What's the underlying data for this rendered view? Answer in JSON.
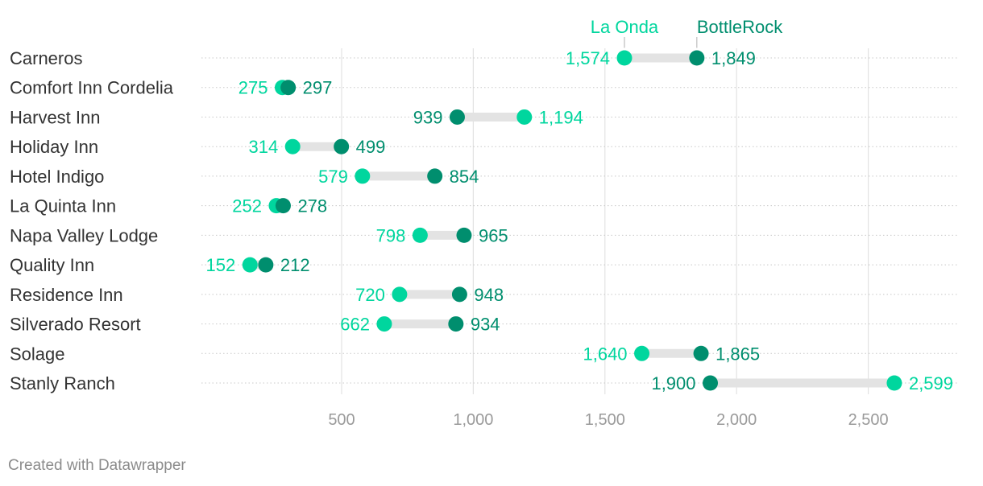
{
  "chart_data": {
    "type": "dot-range",
    "categories": [
      "Carneros",
      "Comfort Inn Cordelia",
      "Harvest Inn",
      "Holiday Inn",
      "Hotel Indigo",
      "La Quinta Inn",
      "Napa Valley Lodge",
      "Quality Inn",
      "Residence Inn",
      "Silverado Resort",
      "Solage",
      "Stanly Ranch"
    ],
    "series": [
      {
        "name": "La Onda",
        "color": "#00d69e",
        "values": [
          1574,
          275,
          1194,
          314,
          579,
          252,
          798,
          152,
          720,
          662,
          1640,
          2599
        ],
        "labels": [
          "1,574",
          "275",
          "1,194",
          "314",
          "579",
          "252",
          "798",
          "152",
          "720",
          "662",
          "1,640",
          "2,599"
        ]
      },
      {
        "name": "BottleRock",
        "color": "#008e6e",
        "values": [
          1849,
          297,
          939,
          499,
          854,
          278,
          965,
          212,
          948,
          934,
          1865,
          1900
        ],
        "labels": [
          "1,849",
          "297",
          "939",
          "499",
          "854",
          "278",
          "965",
          "212",
          "948",
          "934",
          "1,865",
          "1,900"
        ]
      }
    ],
    "xlim": [
      0,
      2800
    ],
    "xticks": [
      500,
      1000,
      1500,
      2000,
      2500
    ],
    "xtick_labels": [
      "500",
      "1,000",
      "1,500",
      "2,000",
      "2,500"
    ],
    "grid": true,
    "legend_placement": "top, labels attached to first row dots"
  },
  "footer": {
    "credit": "Created with Datawrapper"
  }
}
